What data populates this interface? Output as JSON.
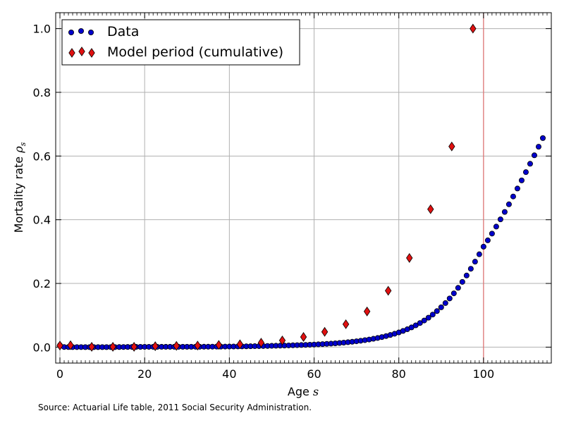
{
  "caption": "Source: Actuarial Life table, 2011 Social Security Administration.",
  "chart_data": {
    "type": "scatter",
    "xlabel": "Age s",
    "ylabel": "Mortality rate ρs",
    "xlim": [
      -1,
      116
    ],
    "ylim": [
      -0.05,
      1.05
    ],
    "x_ticks": [
      0,
      20,
      40,
      60,
      80,
      100
    ],
    "y_ticks": [
      0.0,
      0.2,
      0.4,
      0.6,
      0.8,
      1.0
    ],
    "x_tick_labels": [
      "0",
      "20",
      "40",
      "60",
      "80",
      "100"
    ],
    "y_tick_labels": [
      "0.0",
      "0.2",
      "0.4",
      "0.6",
      "0.8",
      "1.0"
    ],
    "grid": true,
    "legend_position": "top-left",
    "vline": {
      "x": 100,
      "color": "#e07070"
    },
    "series": [
      {
        "name": "Data",
        "marker": "circle",
        "color": "#0000cc",
        "x": [
          0,
          1,
          2,
          3,
          4,
          5,
          6,
          7,
          8,
          9,
          10,
          11,
          12,
          13,
          14,
          15,
          16,
          17,
          18,
          19,
          20,
          21,
          22,
          23,
          24,
          25,
          26,
          27,
          28,
          29,
          30,
          31,
          32,
          33,
          34,
          35,
          36,
          37,
          38,
          39,
          40,
          41,
          42,
          43,
          44,
          45,
          46,
          47,
          48,
          49,
          50,
          51,
          52,
          53,
          54,
          55,
          56,
          57,
          58,
          59,
          60,
          61,
          62,
          63,
          64,
          65,
          66,
          67,
          68,
          69,
          70,
          71,
          72,
          73,
          74,
          75,
          76,
          77,
          78,
          79,
          80,
          81,
          82,
          83,
          84,
          85,
          86,
          87,
          88,
          89,
          90,
          91,
          92,
          93,
          94,
          95,
          96,
          97,
          98,
          99,
          100,
          101,
          102,
          103,
          104,
          105,
          106,
          107,
          108,
          109,
          110,
          111,
          112,
          113,
          114
        ],
        "y": [
          0.006,
          0.0004,
          0.0003,
          0.0002,
          0.0002,
          0.0002,
          0.0001,
          0.0001,
          0.0001,
          0.0001,
          0.0001,
          0.0001,
          0.0002,
          0.0002,
          0.0003,
          0.0004,
          0.0006,
          0.0007,
          0.0008,
          0.0009,
          0.001,
          0.001,
          0.001,
          0.001,
          0.0011,
          0.0011,
          0.0011,
          0.0011,
          0.0011,
          0.0012,
          0.0012,
          0.0012,
          0.0013,
          0.0013,
          0.0014,
          0.0014,
          0.0015,
          0.0016,
          0.0017,
          0.0018,
          0.0019,
          0.002,
          0.0022,
          0.0024,
          0.0026,
          0.0028,
          0.003,
          0.0032,
          0.0035,
          0.0038,
          0.0041,
          0.0044,
          0.0047,
          0.005,
          0.0054,
          0.0058,
          0.0062,
          0.0066,
          0.0071,
          0.0076,
          0.0082,
          0.0088,
          0.0095,
          0.0103,
          0.0111,
          0.012,
          0.0131,
          0.0142,
          0.0155,
          0.0169,
          0.0184,
          0.0201,
          0.022,
          0.024,
          0.0263,
          0.0288,
          0.0316,
          0.0347,
          0.0382,
          0.042,
          0.0462,
          0.051,
          0.0562,
          0.062,
          0.0685,
          0.0757,
          0.0837,
          0.0925,
          0.1023,
          0.1131,
          0.1251,
          0.1383,
          0.1529,
          0.1689,
          0.1862,
          0.2049,
          0.2249,
          0.2461,
          0.2684,
          0.2916,
          0.3155,
          0.3353,
          0.3565,
          0.3785,
          0.4012,
          0.4245,
          0.4485,
          0.473,
          0.498,
          0.5235,
          0.5494,
          0.5757,
          0.6023,
          0.6292,
          0.6563
        ]
      },
      {
        "name": "Model period (cumulative)",
        "marker": "diamond",
        "color": "#e01010",
        "x": [
          0,
          2.5,
          7.5,
          12.5,
          17.5,
          22.5,
          27.5,
          32.5,
          37.5,
          42.5,
          47.5,
          52.5,
          57.5,
          62.5,
          67.5,
          72.5,
          77.5,
          82.5,
          87.5,
          92.5,
          97.5
        ],
        "y": [
          0.005,
          0.006,
          0.001,
          0.001,
          0.001,
          0.003,
          0.004,
          0.005,
          0.007,
          0.009,
          0.014,
          0.021,
          0.032,
          0.048,
          0.072,
          0.112,
          0.177,
          0.28,
          0.433,
          0.63,
          1.0
        ]
      }
    ]
  }
}
